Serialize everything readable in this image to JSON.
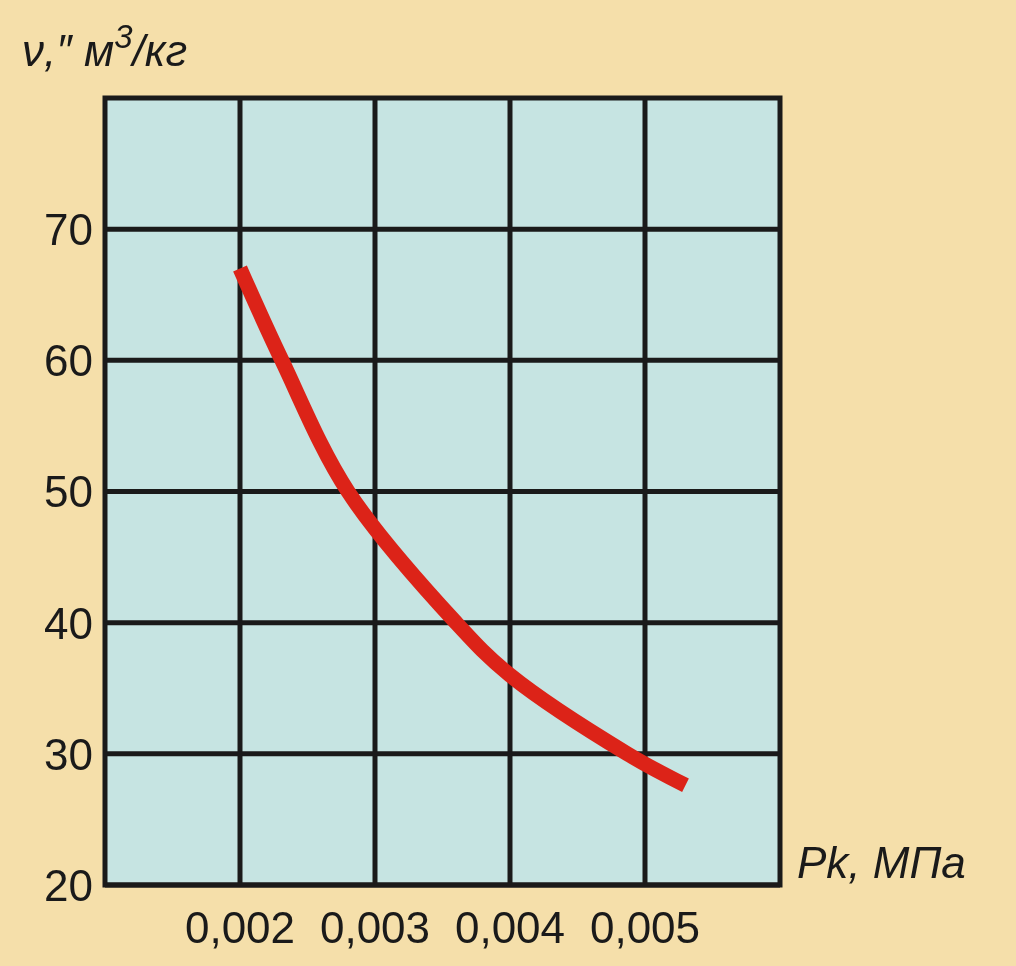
{
  "chart_data": {
    "type": "line",
    "xlabel": "Pk, МПа",
    "ylabel": "ν,″ м$^{3}$/кг",
    "x": [
      0.002,
      0.00231,
      0.0028,
      0.0036,
      0.004,
      0.00487,
      0.0053
    ],
    "series": [
      {
        "color": "#dc2318",
        "values": [
          67,
          60,
          50,
          40,
          36,
          30,
          27.6
        ]
      }
    ],
    "xlim": [
      0.001,
      0.006
    ],
    "xticks": [
      {
        "value": 0.002,
        "label": "0,002"
      },
      {
        "value": 0.003,
        "label": "0,003"
      },
      {
        "value": 0.004,
        "label": "0,004"
      },
      {
        "value": 0.005,
        "label": "0,005"
      }
    ],
    "ylim": [
      20,
      80
    ],
    "yticks": [
      20,
      30,
      40,
      50,
      60,
      70
    ],
    "grid": true,
    "marker": "none",
    "line_style": "solid"
  }
}
